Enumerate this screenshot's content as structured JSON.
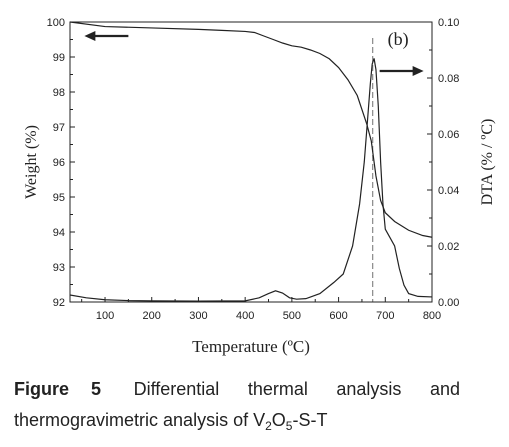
{
  "caption": {
    "label": "Figure",
    "number": "5",
    "text_main": "Differential thermal analysis and thermogravimetric analysis of V",
    "sub1": "2",
    "mid": "O",
    "sub2": "5",
    "tail": "-S-T"
  },
  "chart_data": {
    "type": "line",
    "panel_label": "(b)",
    "xlabel": "Temperature (ºC)",
    "ylabel_left": "Weight (%)",
    "ylabel_right": "DTA (% / ºC)",
    "xlim": [
      25,
      800
    ],
    "ylim_left": [
      92,
      100
    ],
    "ylim_right": [
      0,
      0.1
    ],
    "x_ticks": [
      100,
      200,
      300,
      400,
      500,
      600,
      700,
      800
    ],
    "y_left_ticks": [
      92,
      93,
      94,
      95,
      96,
      97,
      98,
      99,
      100
    ],
    "y_right_ticks": [
      0.0,
      0.02,
      0.04,
      0.06,
      0.08,
      0.1
    ],
    "x_tick_labels": [
      "100",
      "200",
      "300",
      "400",
      "500",
      "600",
      "700",
      "800"
    ],
    "y_left_tick_labels": [
      "92",
      "93",
      "94",
      "95",
      "96",
      "97",
      "98",
      "99",
      "100"
    ],
    "y_right_tick_labels": [
      "0.00",
      "0.02",
      "0.04",
      "0.06",
      "0.08",
      "0.10"
    ],
    "dashed_line_x": 673,
    "series": [
      {
        "axis": "left",
        "points": [
          [
            25,
            100.0
          ],
          [
            100,
            99.87
          ],
          [
            200,
            99.83
          ],
          [
            300,
            99.79
          ],
          [
            350,
            99.76
          ],
          [
            400,
            99.73
          ],
          [
            420,
            99.7
          ],
          [
            440,
            99.6
          ],
          [
            460,
            99.5
          ],
          [
            480,
            99.4
          ],
          [
            500,
            99.32
          ],
          [
            520,
            99.28
          ],
          [
            540,
            99.2
          ],
          [
            560,
            99.1
          ],
          [
            580,
            98.95
          ],
          [
            600,
            98.7
          ],
          [
            620,
            98.35
          ],
          [
            640,
            97.9
          ],
          [
            660,
            97.1
          ],
          [
            670,
            96.6
          ],
          [
            680,
            95.6
          ],
          [
            690,
            94.9
          ],
          [
            700,
            94.55
          ],
          [
            720,
            94.3
          ],
          [
            750,
            94.05
          ],
          [
            780,
            93.9
          ],
          [
            800,
            93.85
          ]
        ]
      },
      {
        "axis": "right",
        "points": [
          [
            25,
            0.0025
          ],
          [
            60,
            0.0015
          ],
          [
            100,
            0.0008
          ],
          [
            150,
            0.0005
          ],
          [
            200,
            0.0004
          ],
          [
            300,
            0.0003
          ],
          [
            400,
            0.0004
          ],
          [
            430,
            0.0015
          ],
          [
            450,
            0.003
          ],
          [
            465,
            0.004
          ],
          [
            480,
            0.0032
          ],
          [
            495,
            0.0015
          ],
          [
            510,
            0.001
          ],
          [
            530,
            0.0012
          ],
          [
            560,
            0.003
          ],
          [
            590,
            0.007
          ],
          [
            610,
            0.01
          ],
          [
            630,
            0.02
          ],
          [
            645,
            0.035
          ],
          [
            655,
            0.05
          ],
          [
            662,
            0.065
          ],
          [
            668,
            0.078
          ],
          [
            672,
            0.085
          ],
          [
            676,
            0.087
          ],
          [
            680,
            0.083
          ],
          [
            685,
            0.07
          ],
          [
            690,
            0.05
          ],
          [
            695,
            0.035
          ],
          [
            700,
            0.026
          ],
          [
            710,
            0.023
          ],
          [
            720,
            0.02
          ],
          [
            730,
            0.012
          ],
          [
            740,
            0.006
          ],
          [
            750,
            0.003
          ],
          [
            770,
            0.002
          ],
          [
            800,
            0.0018
          ]
        ]
      }
    ],
    "arrows": [
      {
        "direction": "left",
        "points_to_axis": "left",
        "x": 150,
        "y_left": 99.6
      },
      {
        "direction": "right",
        "points_to_axis": "right",
        "x": 735,
        "y_left": 98.6
      }
    ]
  }
}
